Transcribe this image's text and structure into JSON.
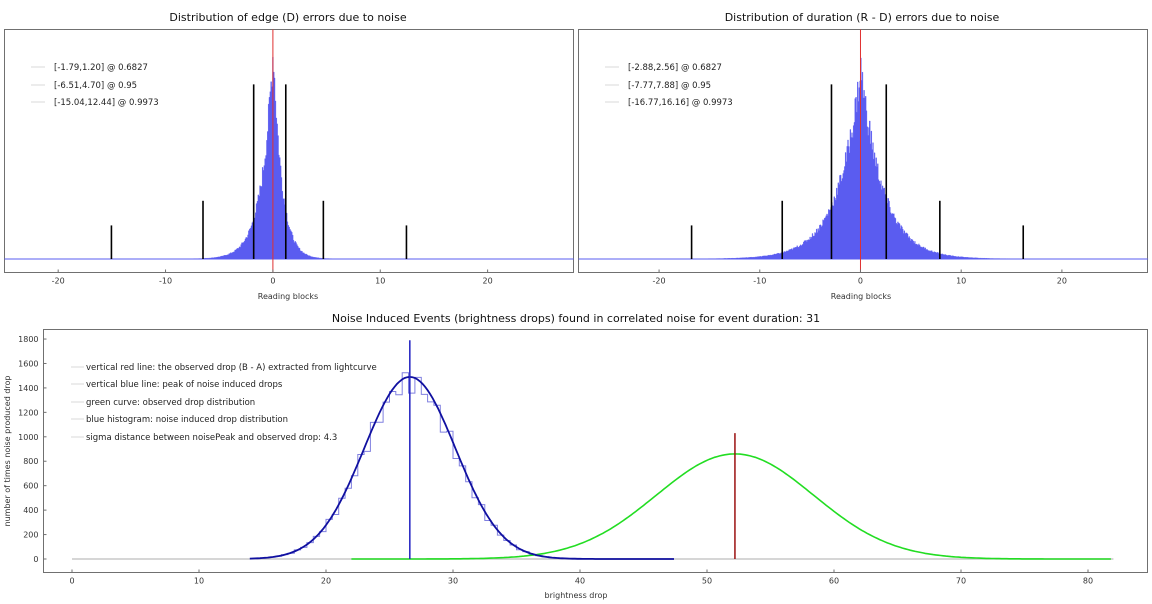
{
  "colors": {
    "hist_fill": "#5a5cf0",
    "center_line": "#e03030",
    "ci_line": "#000000",
    "blue_curve": "#1010a0",
    "blue_line": "#2020c0",
    "green_curve": "#22dd22",
    "red_line": "#9a1010",
    "legend_line": "#d8d8d8",
    "frame": "#707070"
  },
  "chart_data": [
    {
      "type": "bar",
      "title": "Distribution of edge (D) errors due to noise",
      "xlabel": "Reading blocks",
      "ylabel": "",
      "xlim": [
        -25,
        28
      ],
      "xticks": [
        -20,
        -10,
        0,
        10,
        20
      ],
      "xtick_labels": [
        "-20",
        "-10",
        "0",
        "10",
        "20"
      ],
      "distribution": {
        "center": 0,
        "scale_left": 1.1,
        "scale_right": 0.8,
        "shape": "laplace-like",
        "peak_rel": 1.0
      },
      "center_line": 0,
      "intervals": [
        {
          "label": "[-1.79,1.20] @ 0.6827",
          "low": -1.79,
          "high": 1.2,
          "height_rel": 0.78
        },
        {
          "label": "[-6.51,4.70] @ 0.95",
          "low": -6.51,
          "high": 4.7,
          "height_rel": 0.26
        },
        {
          "label": "[-15.04,12.44] @ 0.9973",
          "low": -15.04,
          "high": 12.44,
          "height_rel": 0.15
        }
      ],
      "legend_position": "top-left"
    },
    {
      "type": "bar",
      "title": "Distribution of duration (R - D) errors due to noise",
      "xlabel": "Reading blocks",
      "ylabel": "",
      "xlim": [
        -28,
        28.5
      ],
      "xticks": [
        -20,
        -10,
        0,
        10,
        20
      ],
      "xtick_labels": [
        "-20",
        "-10",
        "0",
        "10",
        "20"
      ],
      "distribution": {
        "center": 0,
        "scale_left": 2.3,
        "scale_right": 2.2,
        "shape": "laplace-like",
        "peak_rel": 0.9
      },
      "center_line": 0,
      "intervals": [
        {
          "label": "[-2.88,2.56] @ 0.6827",
          "low": -2.88,
          "high": 2.56,
          "height_rel": 0.78
        },
        {
          "label": "[-7.77,7.88] @ 0.95",
          "low": -7.77,
          "high": 7.88,
          "height_rel": 0.26
        },
        {
          "label": "[-16.77,16.16] @ 0.9973",
          "low": -16.77,
          "high": 16.16,
          "height_rel": 0.15
        }
      ],
      "legend_position": "top-left"
    },
    {
      "type": "line",
      "title": "Noise Induced Events (brightness drops) found in correlated noise for event duration: 31",
      "xlabel": "brightness drop",
      "ylabel": "number of times noise produced drop",
      "xlim": [
        -3.5,
        83
      ],
      "ylim": [
        -100,
        1900
      ],
      "xticks": [
        0,
        10,
        20,
        30,
        40,
        50,
        60,
        70,
        80
      ],
      "xtick_labels": [
        "0",
        "10",
        "20",
        "30",
        "40",
        "50",
        "60",
        "70",
        "80"
      ],
      "yticks": [
        0,
        200,
        400,
        600,
        800,
        1000,
        1200,
        1400,
        1600,
        1800
      ],
      "ytick_labels": [
        "0",
        "200",
        "400",
        "600",
        "800",
        "1000",
        "1200",
        "1400",
        "1600",
        "1800"
      ],
      "series": [
        {
          "name": "blue histogram: noise induced drop distribution",
          "kind": "gaussian",
          "mean": 26.6,
          "sigma": 3.6,
          "peak": 1490,
          "x_start": 0,
          "x_end": 47.5
        },
        {
          "name": "green curve: observed drop distribution",
          "kind": "gaussian",
          "mean": 52.2,
          "sigma": 6.2,
          "peak": 860,
          "x_start": 22,
          "x_end": 82
        }
      ],
      "vertical_lines": [
        {
          "name": "vertical blue line: peak of noise induced drops",
          "x": 26.6,
          "top": 1790
        },
        {
          "name": "vertical red line: the observed drop (B - A) extracted from lightcurve",
          "x": 52.2,
          "top": 1030
        }
      ],
      "legend": [
        "vertical red line: the observed drop (B - A) extracted from lightcurve",
        "vertical blue line: peak of noise induced drops",
        "green curve: observed drop distribution",
        "blue histogram: noise induced drop distribution",
        "sigma distance between noisePeak and observed drop: 4.3"
      ],
      "legend_position": "top-left"
    }
  ]
}
